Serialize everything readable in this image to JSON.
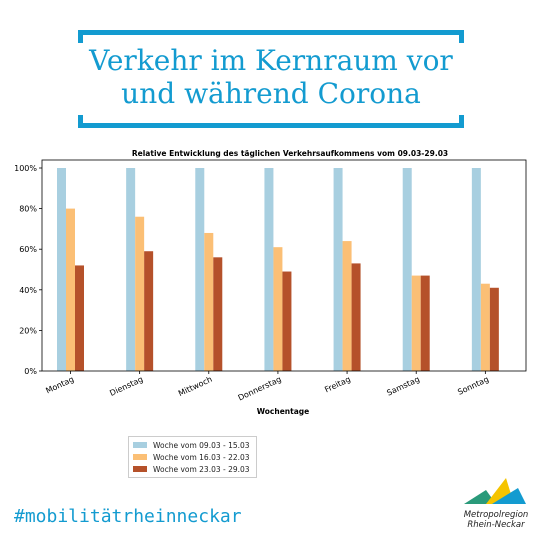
{
  "header": {
    "title_line1": "Verkehr im Kernraum vor",
    "title_line2": "und während Corona",
    "accent_color": "#139bd0"
  },
  "chart_data": {
    "type": "bar",
    "title": "Relative Entwicklung des täglichen Verkehrsaufkommens vom 09.03-29.03",
    "xlabel": "Wochentage",
    "ylabel": "",
    "ylim": [
      0,
      100
    ],
    "yticks": [
      "0%",
      "20%",
      "40%",
      "60%",
      "80%",
      "100%"
    ],
    "categories": [
      "Montag",
      "Dienstag",
      "Mittwoch",
      "Donnerstag",
      "Freitag",
      "Samstag",
      "Sonntag"
    ],
    "series": [
      {
        "name": "Woche vom 09.03 - 15.03",
        "color": "#a8cfe0",
        "values": [
          100,
          100,
          100,
          100,
          100,
          100,
          100
        ]
      },
      {
        "name": "Woche vom 16.03 - 22.03",
        "color": "#fbbf75",
        "values": [
          80,
          76,
          68,
          61,
          64,
          47,
          43
        ]
      },
      {
        "name": "Woche vom 23.03 - 29.03",
        "color": "#b5512a",
        "values": [
          52,
          59,
          56,
          49,
          53,
          47,
          41
        ]
      }
    ],
    "grid": false,
    "legend_position": "bottom-left"
  },
  "footer": {
    "hashtag": "#mobilitätrheinneckar",
    "logo_line1": "Metropolregion",
    "logo_line2": "Rhein-Neckar"
  }
}
